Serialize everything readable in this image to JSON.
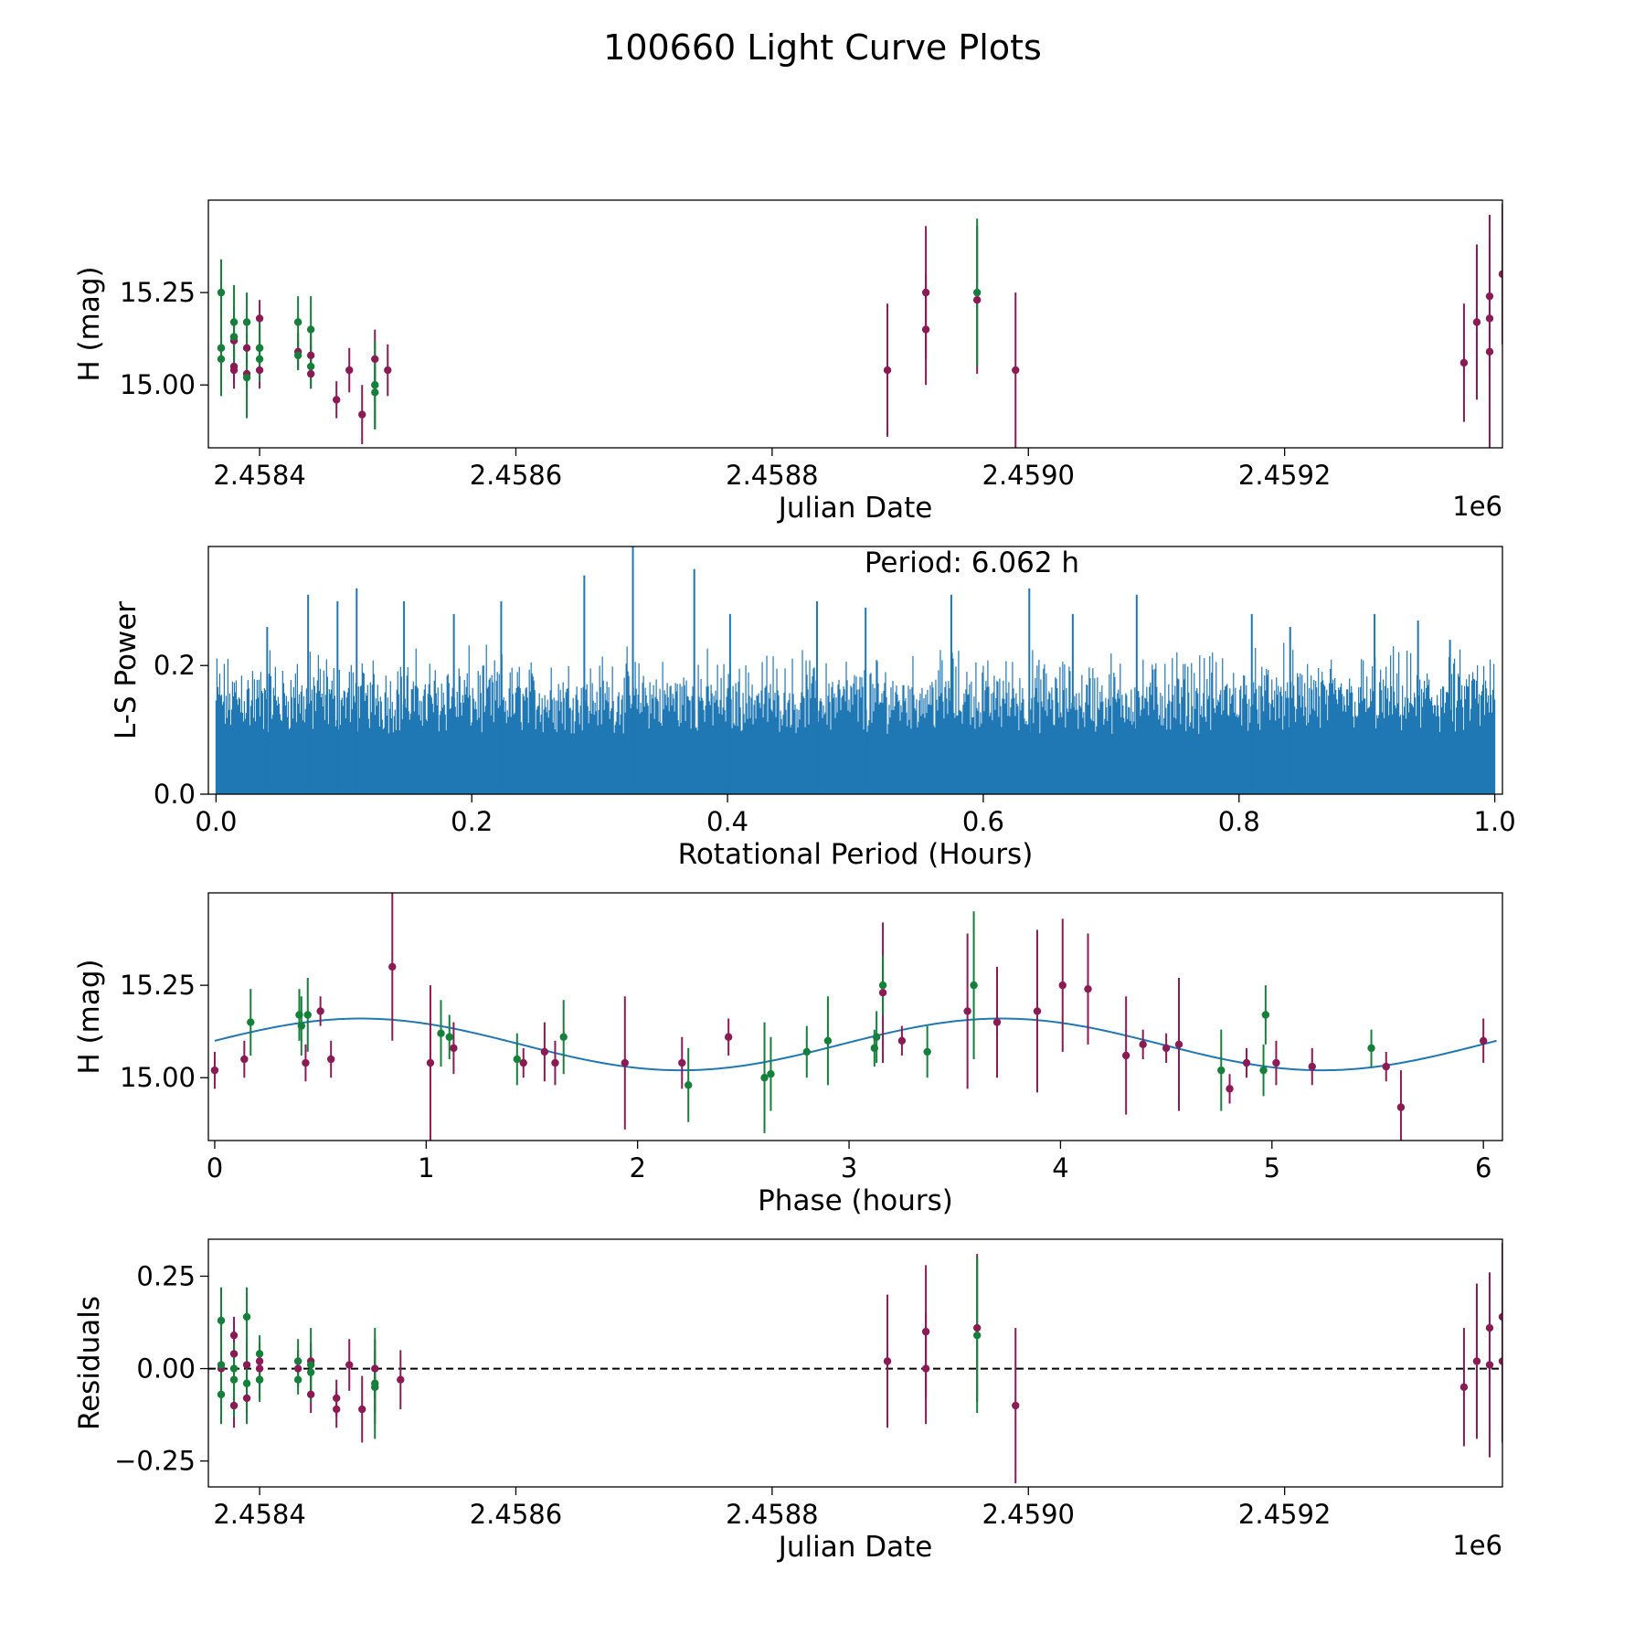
{
  "figure_title": "100660 Light Curve Plots",
  "colors": {
    "magenta": "#8b1a55",
    "green": "#15803a",
    "line": "#1f77b4",
    "zero_line": "#000000"
  },
  "chart_data": [
    {
      "id": "jd-mag",
      "type": "scatter",
      "title": "",
      "xlabel": "Julian Date",
      "ylabel": "H (mag)",
      "x_offset_label": "1e6",
      "xlim": [
        2.45836,
        2.45937
      ],
      "ylim": [
        14.83,
        15.5
      ],
      "y_inverted": false,
      "xticks": [
        2.4584,
        2.4586,
        2.4588,
        2.459,
        2.4592
      ],
      "xtick_labels": [
        "2.4584",
        "2.4586",
        "2.4588",
        "2.4590",
        "2.4592"
      ],
      "yticks": [
        15.0,
        15.25
      ],
      "ytick_labels": [
        "15.00",
        "15.25"
      ],
      "series": [
        {
          "name": "magenta",
          "color": "#8b1a55",
          "points": [
            [
              2.45837,
              15.1,
              0.05
            ],
            [
              2.45838,
              15.05,
              0.05
            ],
            [
              2.45838,
              15.12,
              0.05
            ],
            [
              2.45838,
              15.13,
              0.06
            ],
            [
              2.45838,
              15.04,
              0.05
            ],
            [
              2.45839,
              15.1,
              0.04
            ],
            [
              2.45839,
              15.03,
              0.04
            ],
            [
              2.4584,
              15.04,
              0.05
            ],
            [
              2.4584,
              15.1,
              0.06
            ],
            [
              2.4584,
              15.18,
              0.05
            ],
            [
              2.45843,
              15.09,
              0.05
            ],
            [
              2.45844,
              15.03,
              0.04
            ],
            [
              2.45844,
              15.08,
              0.06
            ],
            [
              2.45846,
              14.96,
              0.05
            ],
            [
              2.45847,
              15.04,
              0.06
            ],
            [
              2.45848,
              14.92,
              0.08
            ],
            [
              2.45849,
              15.07,
              0.08
            ],
            [
              2.4585,
              15.04,
              0.07
            ],
            [
              2.45889,
              15.04,
              0.18
            ],
            [
              2.45892,
              15.25,
              0.18
            ],
            [
              2.45892,
              15.15,
              0.15
            ],
            [
              2.45896,
              15.23,
              0.2
            ],
            [
              2.45899,
              15.04,
              0.21
            ],
            [
              2.45934,
              15.06,
              0.16
            ],
            [
              2.45935,
              15.17,
              0.21
            ],
            [
              2.45936,
              15.24,
              0.22
            ],
            [
              2.45936,
              15.09,
              0.3
            ],
            [
              2.45936,
              15.18,
              0.22
            ],
            [
              2.45937,
              15.3,
              0.19
            ]
          ]
        },
        {
          "name": "green",
          "color": "#15803a",
          "points": [
            [
              2.45837,
              15.1,
              0.12
            ],
            [
              2.45837,
              15.07,
              0.1
            ],
            [
              2.45837,
              15.25,
              0.09
            ],
            [
              2.45838,
              15.17,
              0.1
            ],
            [
              2.45838,
              15.13,
              0.08
            ],
            [
              2.45839,
              15.17,
              0.08
            ],
            [
              2.45839,
              15.02,
              0.11
            ],
            [
              2.4584,
              15.1,
              0.07
            ],
            [
              2.4584,
              15.07,
              0.06
            ],
            [
              2.45843,
              15.08,
              0.04
            ],
            [
              2.45843,
              15.17,
              0.07
            ],
            [
              2.45844,
              15.15,
              0.09
            ],
            [
              2.45844,
              15.05,
              0.06
            ],
            [
              2.45849,
              14.98,
              0.1
            ],
            [
              2.45849,
              15.0,
              0.12
            ],
            [
              2.45896,
              15.25,
              0.2
            ]
          ]
        }
      ]
    },
    {
      "id": "periodogram",
      "type": "line",
      "title": "Period: 6.062 h",
      "xlabel": "Rotational Period (Hours)",
      "ylabel": "L-S Power",
      "xlim": [
        -0.006,
        1.006
      ],
      "ylim": [
        0.0,
        0.385
      ],
      "xticks": [
        0.0,
        0.2,
        0.4,
        0.6,
        0.8,
        1.0
      ],
      "xtick_labels": [
        "0.0",
        "0.2",
        "0.4",
        "0.6",
        "0.8",
        "1.0"
      ],
      "yticks": [
        0.0,
        0.2
      ],
      "ytick_labels": [
        "0.0",
        "0.2"
      ],
      "x_range": [
        0.0,
        1.0
      ],
      "dense_envelope": {
        "typical_max": 0.24,
        "base_level": 0.17,
        "typical_min": 0.0
      },
      "prominent_peaks": [
        [
          0.04,
          0.26
        ],
        [
          0.072,
          0.31
        ],
        [
          0.095,
          0.3
        ],
        [
          0.11,
          0.32
        ],
        [
          0.147,
          0.3
        ],
        [
          0.186,
          0.28
        ],
        [
          0.223,
          0.3
        ],
        [
          0.288,
          0.34
        ],
        [
          0.326,
          0.385
        ],
        [
          0.374,
          0.35
        ],
        [
          0.402,
          0.28
        ],
        [
          0.47,
          0.3
        ],
        [
          0.508,
          0.29
        ],
        [
          0.575,
          0.31
        ],
        [
          0.636,
          0.32
        ],
        [
          0.67,
          0.28
        ],
        [
          0.72,
          0.31
        ],
        [
          0.81,
          0.28
        ],
        [
          0.84,
          0.26
        ],
        [
          0.906,
          0.28
        ],
        [
          0.94,
          0.27
        ],
        [
          0.965,
          0.24
        ]
      ]
    },
    {
      "id": "phase",
      "type": "scatter",
      "title": "",
      "xlabel": "Phase (hours)",
      "ylabel": "H (mag)",
      "xlim": [
        -0.03,
        6.09
      ],
      "ylim": [
        14.83,
        15.5
      ],
      "xticks": [
        0,
        1,
        2,
        3,
        4,
        5,
        6
      ],
      "xtick_labels": [
        "0",
        "1",
        "2",
        "3",
        "4",
        "5",
        "6"
      ],
      "yticks": [
        15.0,
        15.25
      ],
      "ytick_labels": [
        "15.00",
        "15.25"
      ],
      "model": {
        "label": "fit",
        "mean": 15.09,
        "amplitude": 0.07,
        "period_hours": 3.031,
        "peak_phase": 0.69,
        "x_range": [
          0.0,
          6.062
        ]
      },
      "series": [
        {
          "name": "magenta",
          "color": "#8b1a55",
          "points": [
            [
              0.0,
              15.02,
              0.05
            ],
            [
              0.14,
              15.05,
              0.05
            ],
            [
              0.43,
              15.04,
              0.05
            ],
            [
              0.5,
              15.18,
              0.04
            ],
            [
              0.55,
              15.05,
              0.05
            ],
            [
              0.84,
              15.3,
              0.2
            ],
            [
              1.02,
              15.04,
              0.21
            ],
            [
              1.13,
              15.08,
              0.07
            ],
            [
              1.46,
              15.04,
              0.04
            ],
            [
              1.56,
              15.07,
              0.08
            ],
            [
              1.61,
              15.04,
              0.06
            ],
            [
              1.94,
              15.04,
              0.18
            ],
            [
              2.21,
              15.04,
              0.07
            ],
            [
              2.43,
              15.11,
              0.05
            ],
            [
              3.16,
              15.23,
              0.19
            ],
            [
              3.25,
              15.1,
              0.04
            ],
            [
              3.56,
              15.18,
              0.21
            ],
            [
              3.7,
              15.15,
              0.15
            ],
            [
              3.89,
              15.18,
              0.22
            ],
            [
              4.01,
              15.25,
              0.18
            ],
            [
              4.13,
              15.24,
              0.15
            ],
            [
              4.31,
              15.06,
              0.16
            ],
            [
              4.39,
              15.09,
              0.04
            ],
            [
              4.5,
              15.08,
              0.04
            ],
            [
              4.56,
              15.09,
              0.18
            ],
            [
              4.8,
              14.97,
              0.04
            ],
            [
              4.88,
              15.04,
              0.04
            ],
            [
              5.02,
              15.04,
              0.06
            ],
            [
              5.19,
              15.03,
              0.05
            ],
            [
              5.54,
              15.03,
              0.04
            ],
            [
              5.61,
              14.92,
              0.1
            ],
            [
              6.0,
              15.1,
              0.06
            ]
          ]
        },
        {
          "name": "green",
          "color": "#15803a",
          "points": [
            [
              0.17,
              15.15,
              0.09
            ],
            [
              0.4,
              15.17,
              0.07
            ],
            [
              0.41,
              15.14,
              0.08
            ],
            [
              0.44,
              15.17,
              0.1
            ],
            [
              1.07,
              15.12,
              0.09
            ],
            [
              1.11,
              15.11,
              0.06
            ],
            [
              1.43,
              15.05,
              0.07
            ],
            [
              1.65,
              15.11,
              0.1
            ],
            [
              2.24,
              14.98,
              0.1
            ],
            [
              2.6,
              15.0,
              0.15
            ],
            [
              2.63,
              15.01,
              0.1
            ],
            [
              2.8,
              15.07,
              0.07
            ],
            [
              2.9,
              15.1,
              0.12
            ],
            [
              3.12,
              15.08,
              0.05
            ],
            [
              3.13,
              15.11,
              0.07
            ],
            [
              3.16,
              15.25,
              0.08
            ],
            [
              3.37,
              15.07,
              0.07
            ],
            [
              3.59,
              15.25,
              0.2
            ],
            [
              4.76,
              15.02,
              0.11
            ],
            [
              4.96,
              15.02,
              0.07
            ],
            [
              4.97,
              15.17,
              0.08
            ],
            [
              5.47,
              15.08,
              0.05
            ]
          ]
        }
      ]
    },
    {
      "id": "residuals",
      "type": "scatter",
      "title": "",
      "xlabel": "Julian Date",
      "ylabel": "Residuals",
      "x_offset_label": "1e6",
      "xlim": [
        2.45836,
        2.45937
      ],
      "ylim": [
        -0.32,
        0.35
      ],
      "xticks": [
        2.4584,
        2.4586,
        2.4588,
        2.459,
        2.4592
      ],
      "xtick_labels": [
        "2.4584",
        "2.4586",
        "2.4588",
        "2.4590",
        "2.4592"
      ],
      "yticks": [
        -0.25,
        0.0,
        0.25
      ],
      "ytick_labels": [
        "−0.25",
        "0.00",
        "0.25"
      ],
      "reference_line": 0.0,
      "series": [
        {
          "name": "magenta",
          "color": "#8b1a55",
          "points": [
            [
              2.45837,
              0.0,
              0.05
            ],
            [
              2.45838,
              0.09,
              0.05
            ],
            [
              2.45838,
              0.04,
              0.05
            ],
            [
              2.45838,
              -0.1,
              0.06
            ],
            [
              2.45839,
              0.01,
              0.05
            ],
            [
              2.45839,
              -0.08,
              0.04
            ],
            [
              2.4584,
              -0.03,
              0.05
            ],
            [
              2.4584,
              0.0,
              0.05
            ],
            [
              2.4584,
              0.02,
              0.05
            ],
            [
              2.45843,
              0.0,
              0.05
            ],
            [
              2.45844,
              0.02,
              0.05
            ],
            [
              2.45844,
              -0.07,
              0.05
            ],
            [
              2.45846,
              -0.08,
              0.05
            ],
            [
              2.45846,
              -0.11,
              0.05
            ],
            [
              2.45847,
              0.01,
              0.07
            ],
            [
              2.45848,
              -0.11,
              0.09
            ],
            [
              2.45849,
              0.0,
              0.08
            ],
            [
              2.45849,
              -0.05,
              0.07
            ],
            [
              2.45851,
              -0.03,
              0.08
            ],
            [
              2.45889,
              0.02,
              0.18
            ],
            [
              2.45892,
              0.1,
              0.18
            ],
            [
              2.45892,
              0.0,
              0.15
            ],
            [
              2.45896,
              0.11,
              0.2
            ],
            [
              2.45899,
              -0.1,
              0.21
            ],
            [
              2.45934,
              -0.05,
              0.16
            ],
            [
              2.45935,
              0.02,
              0.21
            ],
            [
              2.45936,
              0.11,
              0.15
            ],
            [
              2.45936,
              0.01,
              0.25
            ],
            [
              2.45937,
              0.02,
              0.22
            ],
            [
              2.45937,
              0.14,
              0.2
            ]
          ]
        },
        {
          "name": "green",
          "color": "#15803a",
          "points": [
            [
              2.45837,
              0.01,
              0.12
            ],
            [
              2.45837,
              -0.07,
              0.08
            ],
            [
              2.45837,
              0.13,
              0.09
            ],
            [
              2.45838,
              -0.03,
              0.1
            ],
            [
              2.45838,
              0.0,
              0.07
            ],
            [
              2.45839,
              0.14,
              0.08
            ],
            [
              2.45839,
              -0.04,
              0.11
            ],
            [
              2.4584,
              -0.03,
              0.06
            ],
            [
              2.4584,
              0.04,
              0.05
            ],
            [
              2.45843,
              -0.03,
              0.04
            ],
            [
              2.45843,
              0.02,
              0.06
            ],
            [
              2.45844,
              0.01,
              0.1
            ],
            [
              2.45844,
              -0.01,
              0.06
            ],
            [
              2.45849,
              -0.05,
              0.1
            ],
            [
              2.45849,
              -0.04,
              0.15
            ],
            [
              2.45896,
              0.09,
              0.21
            ]
          ]
        }
      ]
    }
  ]
}
